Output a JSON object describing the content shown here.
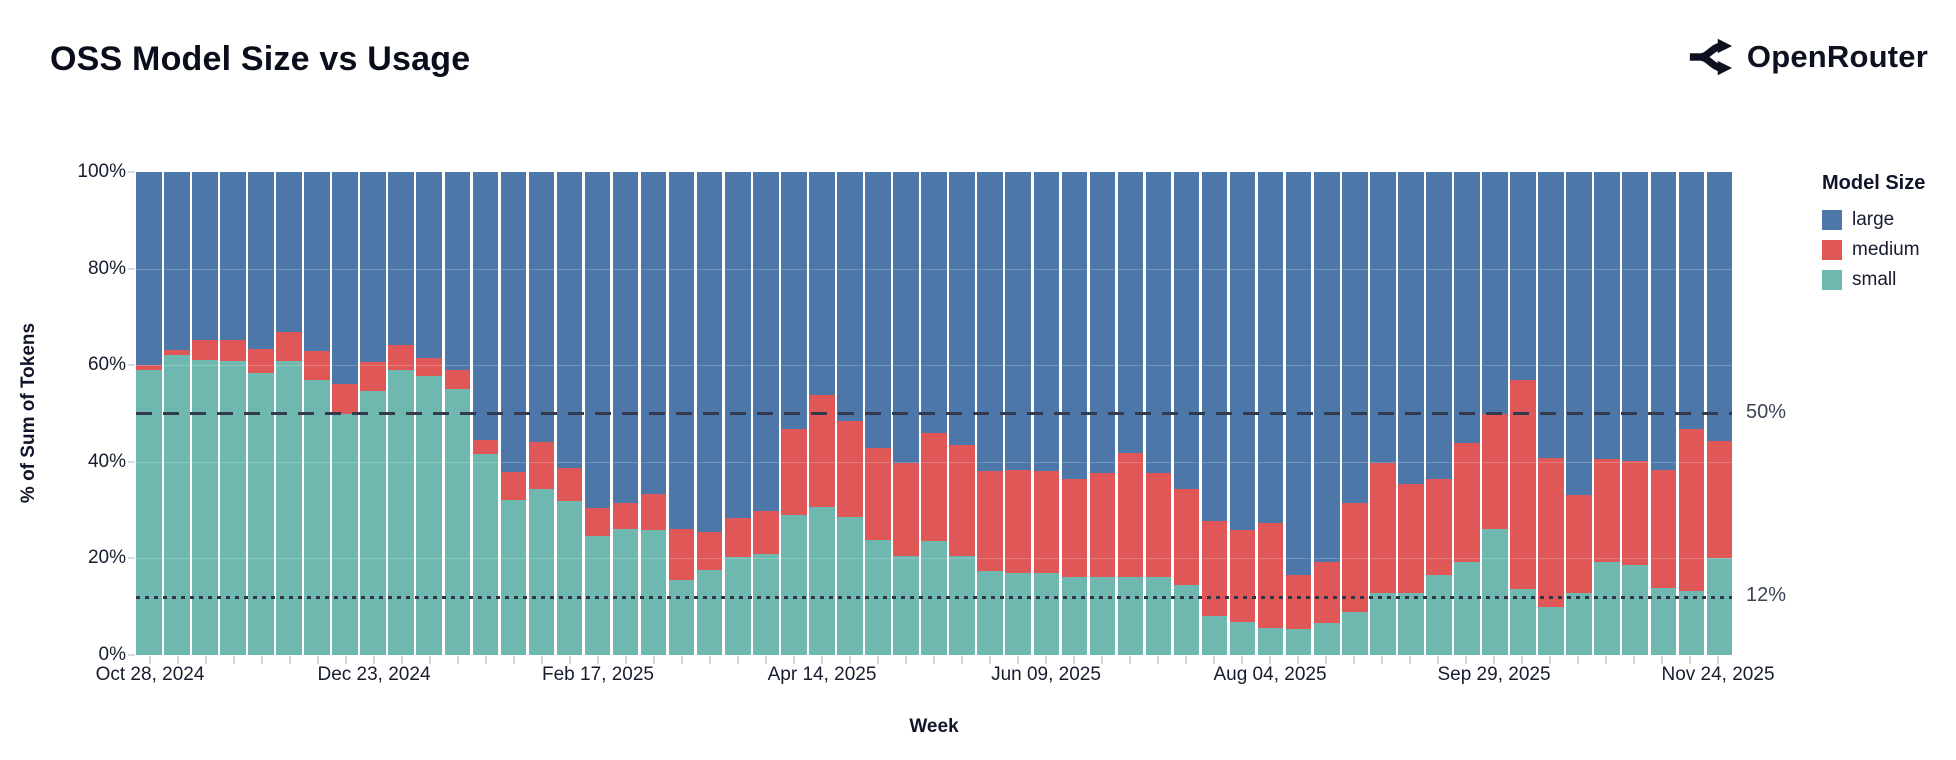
{
  "header": {
    "title": "OSS Model Size vs Usage",
    "brand": "OpenRouter"
  },
  "chart_data": {
    "type": "bar",
    "stacked": true,
    "title": "OSS Model Size vs Usage",
    "xlabel": "Week",
    "ylabel": "% of Sum of Tokens",
    "ylim": [
      0,
      100
    ],
    "legend_title": "Model Size",
    "legend_position": "right",
    "grid": false,
    "colors": {
      "large": "#4d77a8",
      "medium": "#e05757",
      "small": "#6fb8af"
    },
    "y_ticks": [
      {
        "value": 0,
        "label": "0%"
      },
      {
        "value": 20,
        "label": "20%"
      },
      {
        "value": 40,
        "label": "40%"
      },
      {
        "value": 60,
        "label": "60%"
      },
      {
        "value": 80,
        "label": "80%"
      },
      {
        "value": 100,
        "label": "100%"
      }
    ],
    "x_ticks": [
      {
        "index": 0,
        "label": "Oct 28, 2024"
      },
      {
        "index": 8,
        "label": "Dec 23, 2024"
      },
      {
        "index": 16,
        "label": "Feb 17, 2025"
      },
      {
        "index": 24,
        "label": "Apr 14, 2025"
      },
      {
        "index": 32,
        "label": "Jun 09, 2025"
      },
      {
        "index": 40,
        "label": "Aug 04, 2025"
      },
      {
        "index": 48,
        "label": "Sep 29, 2025"
      },
      {
        "index": 56,
        "label": "Nov 24, 2025"
      }
    ],
    "reference_lines": [
      {
        "value": 50,
        "label": "50%",
        "style": "dashed"
      },
      {
        "value": 12,
        "label": "12%",
        "style": "dotted"
      }
    ],
    "categories": [
      "Oct 28, 2024",
      "Nov 04, 2024",
      "Nov 11, 2024",
      "Nov 18, 2024",
      "Nov 25, 2024",
      "Dec 02, 2024",
      "Dec 09, 2024",
      "Dec 16, 2024",
      "Dec 23, 2024",
      "Dec 30, 2024",
      "Jan 06, 2025",
      "Jan 13, 2025",
      "Jan 20, 2025",
      "Jan 27, 2025",
      "Feb 03, 2025",
      "Feb 10, 2025",
      "Feb 17, 2025",
      "Feb 24, 2025",
      "Mar 03, 2025",
      "Mar 10, 2025",
      "Mar 17, 2025",
      "Mar 24, 2025",
      "Mar 31, 2025",
      "Apr 07, 2025",
      "Apr 14, 2025",
      "Apr 21, 2025",
      "Apr 28, 2025",
      "May 05, 2025",
      "May 12, 2025",
      "May 19, 2025",
      "May 26, 2025",
      "Jun 02, 2025",
      "Jun 09, 2025",
      "Jun 16, 2025",
      "Jun 23, 2025",
      "Jun 30, 2025",
      "Jul 07, 2025",
      "Jul 14, 2025",
      "Jul 21, 2025",
      "Jul 28, 2025",
      "Aug 04, 2025",
      "Aug 11, 2025",
      "Aug 18, 2025",
      "Aug 25, 2025",
      "Sep 01, 2025",
      "Sep 08, 2025",
      "Sep 15, 2025",
      "Sep 22, 2025",
      "Sep 29, 2025",
      "Oct 06, 2025",
      "Oct 13, 2025",
      "Oct 20, 2025",
      "Oct 27, 2025",
      "Nov 03, 2025",
      "Nov 10, 2025",
      "Nov 17, 2025",
      "Nov 24, 2025"
    ],
    "series": [
      {
        "name": "large",
        "values": [
          40,
          36.8,
          34.8,
          34.8,
          36.7,
          33.2,
          37,
          43.8,
          39.4,
          35.8,
          38.5,
          40.9,
          55.5,
          62.2,
          55.8,
          61.2,
          69.5,
          68.6,
          66.6,
          74,
          74.5,
          71.7,
          70.1,
          53.2,
          46.1,
          51.6,
          57.1,
          60.2,
          54,
          56.5,
          62,
          61.6,
          61.9,
          63.6,
          62.4,
          58.1,
          62.3,
          65.7,
          72.3,
          74.1,
          72.6,
          83.4,
          80.7,
          68.5,
          60.2,
          64.6,
          63.6,
          56.2,
          50,
          43,
          59.2,
          66.9,
          59.4,
          59.9,
          61.6,
          53.3,
          55.7
        ]
      },
      {
        "name": "medium",
        "values": [
          1,
          1,
          4.2,
          4.3,
          5,
          6,
          6,
          6.4,
          5.9,
          5.2,
          3.8,
          4.1,
          2.8,
          5.7,
          9.9,
          6.9,
          5.9,
          5.4,
          7.6,
          10.4,
          7.9,
          8,
          8.9,
          17.9,
          23.3,
          19.9,
          19,
          19.4,
          22.4,
          23.1,
          20.6,
          21.4,
          21.1,
          20.2,
          21.5,
          25.8,
          21.6,
          19.8,
          19.6,
          19,
          21.9,
          11.3,
          12.7,
          22.5,
          27,
          22.5,
          19.8,
          24.5,
          24,
          43.4,
          30.8,
          20.3,
          21.4,
          21.5,
          24.6,
          33.4,
          24.3
        ]
      },
      {
        "name": "small",
        "values": [
          59,
          62.2,
          61,
          60.9,
          58.3,
          60.8,
          57,
          49.8,
          54.7,
          59,
          57.7,
          55,
          41.7,
          32.1,
          34.3,
          31.9,
          24.6,
          26,
          25.8,
          15.6,
          17.6,
          20.3,
          21,
          28.9,
          30.6,
          28.5,
          23.9,
          20.4,
          23.6,
          20.4,
          17.4,
          17,
          17,
          16.2,
          16.1,
          16.1,
          16.1,
          14.5,
          8.1,
          6.9,
          5.5,
          5.3,
          6.6,
          9,
          12.8,
          12.9,
          16.6,
          19.3,
          26,
          13.6,
          10,
          12.8,
          19.2,
          18.6,
          13.8,
          13.3,
          20
        ]
      }
    ]
  }
}
